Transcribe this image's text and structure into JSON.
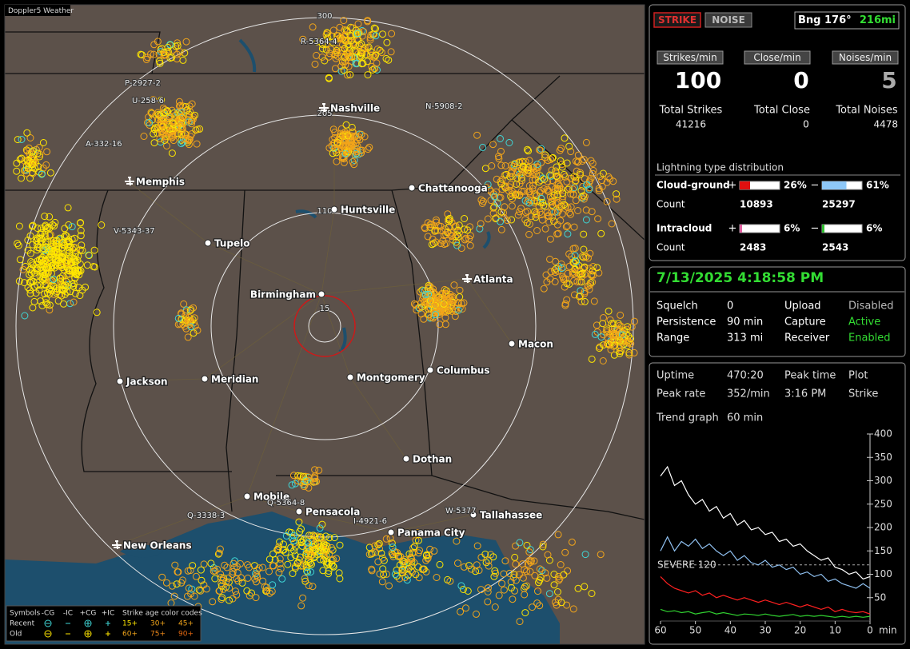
{
  "app_title": "Doppler5 Weather",
  "map": {
    "range_rings": [
      15,
      110,
      205,
      300
    ],
    "cities": [
      "Nashville",
      "Memphis",
      "Chattanooga",
      "Huntsville",
      "Tupelo",
      "Birmingham",
      "Atlanta",
      "Macon",
      "Jackson",
      "Meridian",
      "Montgomery",
      "Columbus",
      "Dothan",
      "Mobile",
      "Pensacola",
      "Tallahassee",
      "Panama City",
      "New Orleans"
    ],
    "stations": [
      "R-5364-4",
      "P-2927-2",
      "U-258-6",
      "A-332-16",
      "N-5908-2",
      "V-5343-37",
      "Q-5364-8",
      "Q-3338-3",
      "I-4921-6",
      "W-5377"
    ],
    "legend": {
      "symbols_label": "Symbols",
      "symbol_types": [
        "-CG",
        "-IC",
        "+CG",
        "+IC"
      ],
      "age_label": "Strike age color codes",
      "rows": [
        "Recent",
        "Old"
      ],
      "ages": [
        [
          "15+",
          "30+",
          "45+"
        ],
        [
          "60+",
          "75+",
          "90+"
        ]
      ]
    }
  },
  "status": {
    "buttons": [
      "STRIKE",
      "NOISE"
    ],
    "bearing": "Bng 176°",
    "distance": "216mi",
    "rates": [
      {
        "label": "Strikes/min",
        "value": 100,
        "total_label": "Total Strikes",
        "total": 41216
      },
      {
        "label": "Close/min",
        "value": 0,
        "total_label": "Total Close",
        "total": 0
      },
      {
        "label": "Noises/min",
        "value": 5,
        "total_label": "Total Noises",
        "total": 4478
      }
    ],
    "distribution": {
      "title": "Lightning type distribution",
      "count_label": "Count",
      "signs": [
        "+",
        "−"
      ],
      "types": [
        {
          "name": "Cloud-ground",
          "positive": {
            "value": 26,
            "label": "26%"
          },
          "negative": {
            "value": 61,
            "label": "61%"
          },
          "positive_count": 10893,
          "negative_count": 25297
        },
        {
          "name": "Intracloud",
          "positive": {
            "value": 6,
            "label": "6%"
          },
          "negative": {
            "value": 6,
            "label": "6%"
          },
          "positive_count": 2483,
          "negative_count": 2543
        }
      ]
    }
  },
  "info": {
    "timestamp": "7/13/2025 4:18:58 PM",
    "rows": [
      [
        "Squelch",
        "0",
        "Upload",
        "Disabled"
      ],
      [
        "Persistence",
        "90 min",
        "Capture",
        "Active"
      ],
      [
        "Range",
        "313 mi",
        "Receiver",
        "Enabled"
      ]
    ]
  },
  "stats": {
    "rows": [
      [
        "Uptime",
        "470:20",
        "Peak time",
        "Plot"
      ],
      [
        "Peak rate",
        "352/min",
        "3:16 PM",
        "Strike"
      ]
    ],
    "trend_label": "Trend graph",
    "trend_span": "60 min"
  },
  "trend_graph": {
    "type": "line",
    "x": [
      60,
      58,
      56,
      54,
      52,
      50,
      48,
      46,
      44,
      42,
      40,
      38,
      36,
      34,
      32,
      30,
      28,
      26,
      24,
      22,
      20,
      18,
      16,
      14,
      12,
      10,
      8,
      6,
      4,
      2,
      0
    ],
    "xlim": [
      60,
      0
    ],
    "xticks": [
      60,
      50,
      40,
      30,
      20,
      10,
      0
    ],
    "x_unit": "min",
    "ylim": [
      0,
      400
    ],
    "yticks": [
      50,
      100,
      150,
      200,
      250,
      300,
      350,
      400
    ],
    "threshold": {
      "label": "SEVERE 120",
      "value": 120
    },
    "series": [
      {
        "color": "#ffffff",
        "values": [
          310,
          330,
          290,
          300,
          270,
          250,
          260,
          235,
          245,
          220,
          230,
          205,
          215,
          195,
          200,
          185,
          190,
          170,
          175,
          160,
          165,
          150,
          140,
          130,
          135,
          115,
          110,
          100,
          105,
          90,
          95
        ]
      },
      {
        "color": "#8fc0f0",
        "values": [
          150,
          180,
          150,
          170,
          160,
          175,
          155,
          165,
          150,
          140,
          150,
          130,
          140,
          125,
          120,
          130,
          115,
          120,
          110,
          115,
          100,
          105,
          95,
          100,
          85,
          90,
          80,
          75,
          70,
          80,
          70
        ]
      },
      {
        "color": "#ff2020",
        "values": [
          95,
          80,
          70,
          65,
          60,
          65,
          55,
          60,
          50,
          55,
          50,
          45,
          50,
          45,
          40,
          45,
          40,
          35,
          40,
          35,
          30,
          35,
          30,
          25,
          30,
          20,
          25,
          20,
          18,
          20,
          15
        ]
      },
      {
        "color": "#30d030",
        "values": [
          25,
          20,
          22,
          18,
          20,
          15,
          18,
          20,
          15,
          18,
          15,
          12,
          15,
          14,
          12,
          15,
          12,
          10,
          12,
          14,
          10,
          12,
          10,
          12,
          10,
          8,
          10,
          8,
          10,
          8,
          10
        ]
      }
    ]
  }
}
